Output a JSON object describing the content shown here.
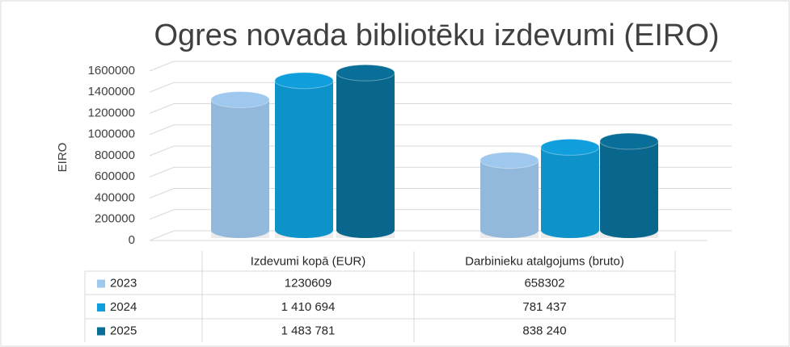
{
  "chart_data": {
    "type": "bar3d",
    "title": "Ogres novada bibliotēku izdevumi (EIRO)",
    "y_label": "EIRO",
    "categories": [
      "Izdevumi kopā (EUR)",
      "Darbinieku atalgojums (bruto)"
    ],
    "series": [
      {
        "name": "2023",
        "color": "#9fc8ee",
        "values": [
          1230609,
          658302
        ]
      },
      {
        "name": "2024",
        "color": "#109fdc",
        "values": [
          1410694,
          781437
        ],
        "value_labels": [
          "1 410 694",
          "781 437"
        ]
      },
      {
        "name": "2025",
        "color": "#0a6f98",
        "values": [
          1483781,
          838240
        ],
        "value_labels": [
          "1 483 781",
          "838 240"
        ]
      }
    ],
    "ylim": [
      0,
      1600000
    ],
    "yticks": [
      0,
      200000,
      400000,
      600000,
      800000,
      1000000,
      1200000,
      1400000,
      1600000
    ],
    "grid": true,
    "legend": "table"
  }
}
